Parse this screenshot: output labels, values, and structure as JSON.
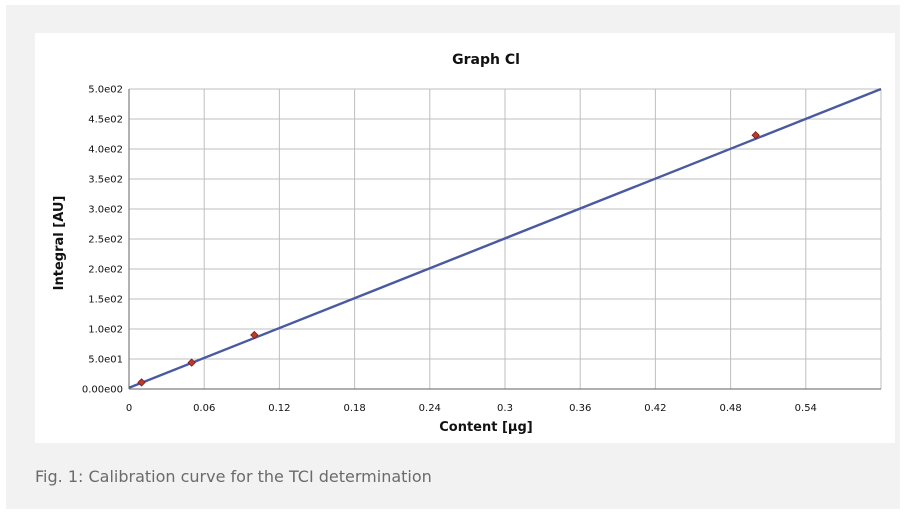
{
  "caption": "Fig. 1: Calibration curve for the TCI determination",
  "chart_data": {
    "type": "scatter",
    "title": "Graph Cl",
    "xlabel": "Content [µg]",
    "ylabel": "Integral [AU]",
    "xlim": [
      0,
      0.6
    ],
    "ylim": [
      0,
      500
    ],
    "x_ticks": [
      0,
      0.06,
      0.12,
      0.18,
      0.24,
      0.3,
      0.36,
      0.42,
      0.48,
      0.54
    ],
    "x_tick_labels": [
      "0",
      "0.06",
      "0.12",
      "0.18",
      "0.24",
      "0.3",
      "0.36",
      "0.42",
      "0.48",
      "0.54"
    ],
    "y_ticks": [
      0,
      50,
      100,
      150,
      200,
      250,
      300,
      350,
      400,
      450,
      500
    ],
    "y_tick_labels": [
      "0.00e00",
      "5.0e01",
      "1.0e02",
      "1.5e02",
      "2.0e02",
      "2.5e02",
      "3.0e02",
      "3.5e02",
      "4.0e02",
      "4.5e02",
      "5.0e02"
    ],
    "grid": true,
    "legend": "none",
    "points": [
      {
        "x": 0.01,
        "y": 11
      },
      {
        "x": 0.05,
        "y": 44
      },
      {
        "x": 0.1,
        "y": 90
      },
      {
        "x": 0.5,
        "y": 423
      }
    ],
    "fit_line": {
      "x": [
        0,
        0.6
      ],
      "y": [
        2,
        500
      ]
    },
    "colors": {
      "grid": "#bfbfbf",
      "axis": "#7f7f7f",
      "fit_line": "#4a5aa0",
      "marker_fill": "#c0392b",
      "marker_stroke": "#7a1c12"
    }
  }
}
